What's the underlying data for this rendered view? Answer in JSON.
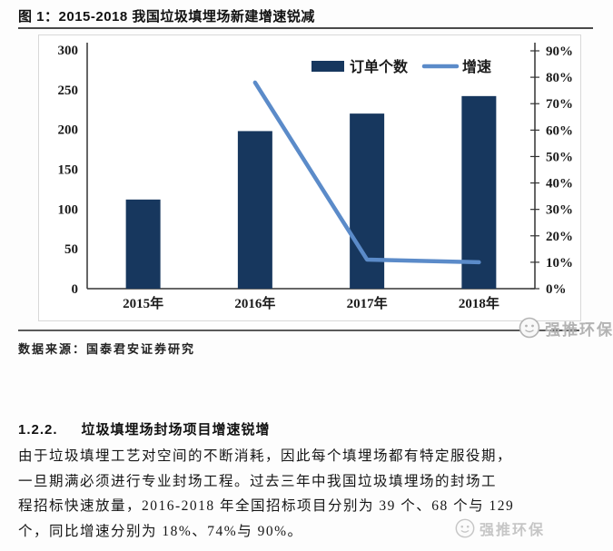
{
  "figure": {
    "title": "图 1：2015-2018 我国垃圾填埋场新建增速锐减",
    "source": "数据来源：国泰君安证券研究",
    "watermark_text": "强推环保"
  },
  "chart_data": {
    "type": "bar",
    "subtype": "bar+line combo",
    "categories": [
      "2015年",
      "2016年",
      "2017年",
      "2018年"
    ],
    "series": [
      {
        "name": "订单个数",
        "type": "bar",
        "axis": "left",
        "color": "#17375E",
        "values": [
          112,
          198,
          220,
          242
        ]
      },
      {
        "name": "增速",
        "type": "line",
        "axis": "right",
        "color": "#5B8BC9",
        "values": [
          null,
          78,
          11,
          10
        ],
        "unit": "%"
      }
    ],
    "title": "2015-2018 我国垃圾填埋场新建增速锐减",
    "xlabel": "",
    "ylabel": "",
    "left_axis": {
      "min": 0,
      "max": 300,
      "step": 50,
      "suffix": ""
    },
    "right_axis": {
      "min": 0,
      "max": 90,
      "step": 10,
      "suffix": "%"
    },
    "legend_position": "top-center",
    "grid": false
  },
  "section": {
    "heading_number": "1.2.2.",
    "heading_text": "垃圾填埋场封场项目增速锐增",
    "paragraph_lines": [
      "由于垃圾填埋工艺对空间的不断消耗，因此每个填埋场都有特定服役期，",
      "一旦期满必须进行专业封场工程。过去三年中我国垃圾填埋场的封场工",
      "程招标快速放量，2016-2018 年全国招标项目分别为 39 个、68 个与 129",
      "个，同比增速分别为 18%、74%与 90%。"
    ]
  },
  "watermark": {
    "text": "强推环保"
  }
}
